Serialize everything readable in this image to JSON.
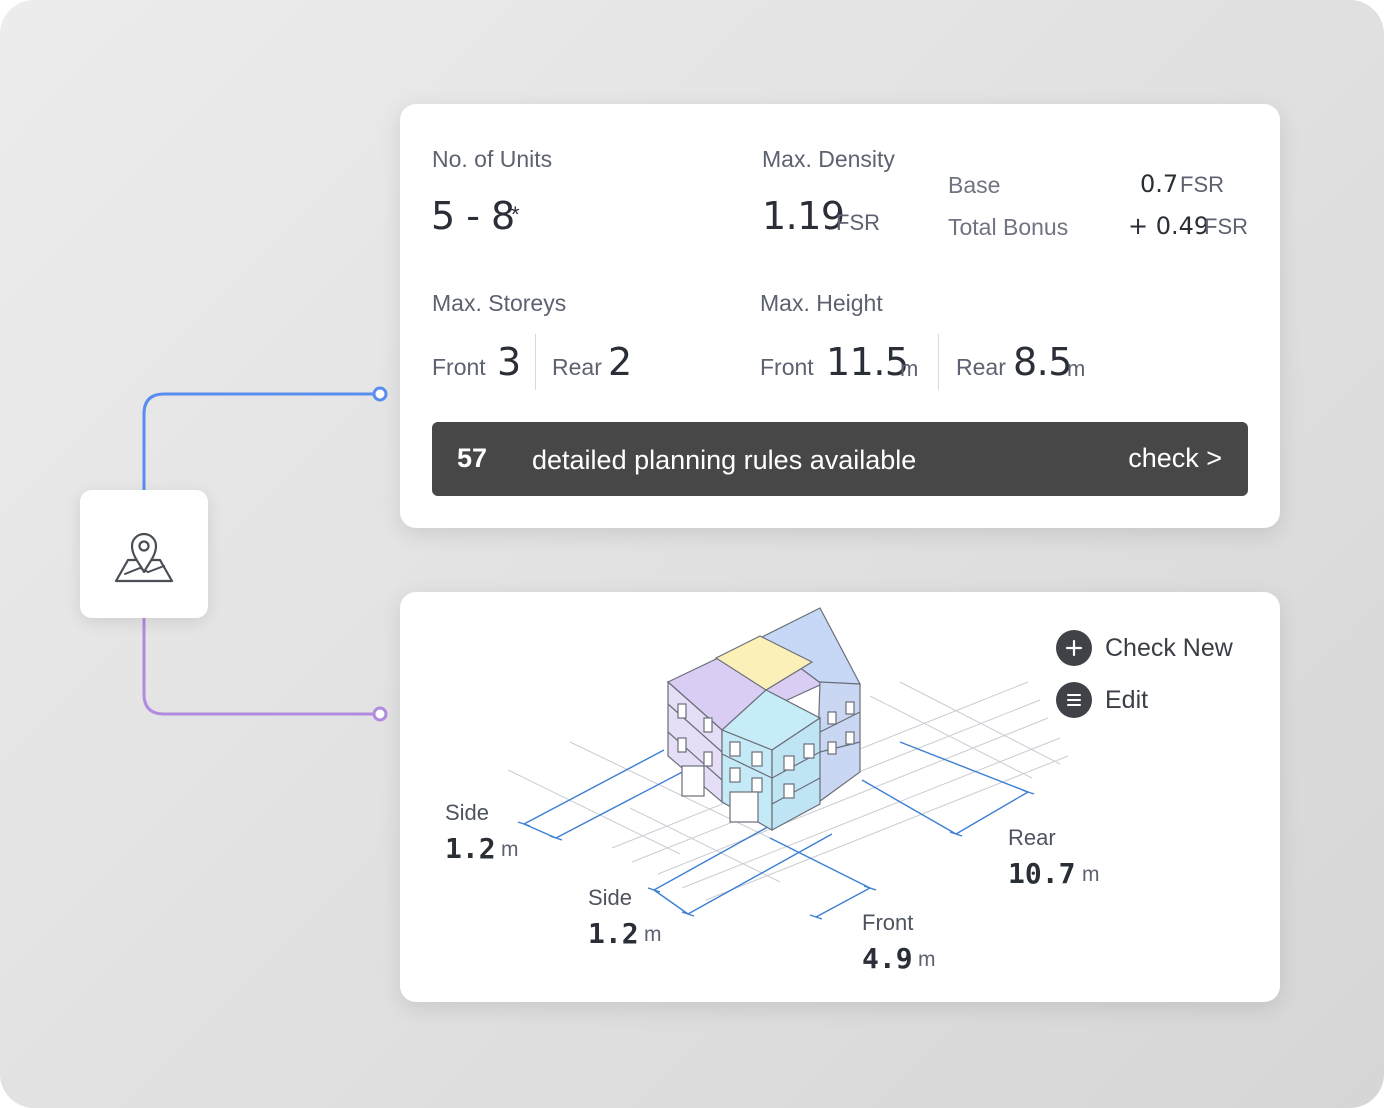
{
  "stats": {
    "units": {
      "label": "No. of Units",
      "value": "5 - 8",
      "note": "*"
    },
    "density": {
      "label": "Max. Density",
      "value": "1.19",
      "unit": "FSR",
      "base_label": "Base",
      "base_value": "0.7",
      "base_unit": "FSR",
      "bonus_label": "Total Bonus",
      "bonus_value": "+ 0.49",
      "bonus_unit": "FSR"
    },
    "storeys": {
      "label": "Max. Storeys",
      "front_label": "Front",
      "front_value": "3",
      "rear_label": "Rear",
      "rear_value": "2"
    },
    "height": {
      "label": "Max. Height",
      "front_label": "Front",
      "front_value": "11.5",
      "front_unit": "m",
      "rear_label": "Rear",
      "rear_value": "8.5",
      "rear_unit": "m"
    },
    "rules": {
      "count": "57",
      "text": "detailed planning rules available",
      "action": "check >"
    }
  },
  "model": {
    "actions": {
      "check_new": "Check New",
      "edit": "Edit"
    },
    "setbacks": {
      "side_left": {
        "label": "Side",
        "value": "1.2",
        "unit": "m"
      },
      "side_front": {
        "label": "Side",
        "value": "1.2",
        "unit": "m"
      },
      "front": {
        "label": "Front",
        "value": "4.9",
        "unit": "m"
      },
      "rear": {
        "label": "Rear",
        "value": "10.7",
        "unit": "m"
      }
    }
  },
  "icons": {
    "location": "map-pin-icon",
    "add": "plus-icon",
    "edit": "menu-lines-icon"
  },
  "colors": {
    "connector_top": "#5b8def",
    "connector_bottom": "#b18be0",
    "bar_bg": "#474747",
    "dimension_lines": "#3d7fd4"
  }
}
